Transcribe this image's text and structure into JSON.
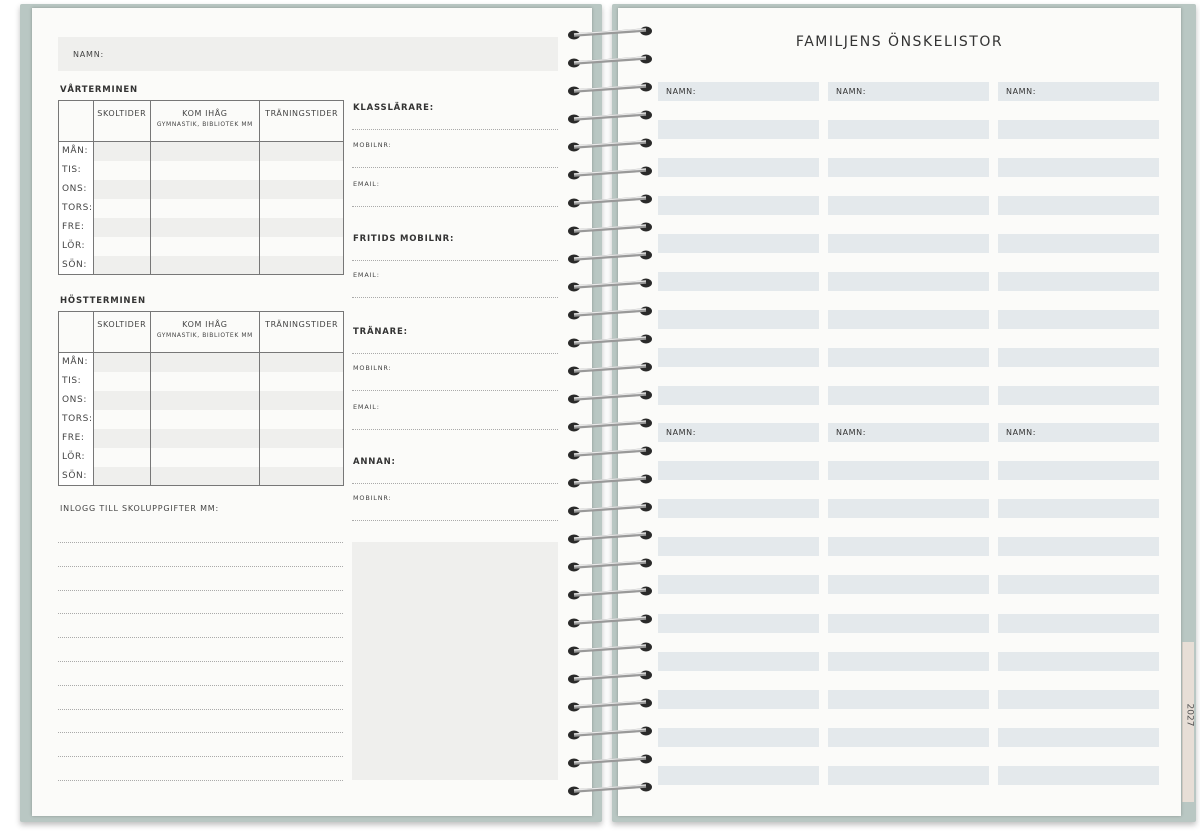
{
  "left_page": {
    "name_label": "NAMN:",
    "spring_term": {
      "title": "VÅRTERMINEN"
    },
    "autumn_term": {
      "title": "HÖSTTERMINEN"
    },
    "table_headers": [
      {
        "label": "SKOLTIDER",
        "sub": ""
      },
      {
        "label": "KOM IHÅG",
        "sub": "GYMNASTIK, BIBLIOTEK MM"
      },
      {
        "label": "TRÄNINGSTIDER",
        "sub": ""
      }
    ],
    "days": [
      "MÅN:",
      "TIS:",
      "ONS:",
      "TORS:",
      "FRE:",
      "LÖR:",
      "SÖN:"
    ],
    "login_label": "INLOGG TILL SKOLUPPGIFTER MM:",
    "contacts": [
      {
        "label": "KLASSLÄRARE:",
        "bold": true
      },
      {
        "label": "MOBILNR:",
        "bold": false
      },
      {
        "label": "EMAIL:",
        "bold": false
      },
      {
        "label": "FRITIDS MOBILNR:",
        "bold": true
      },
      {
        "label": "EMAIL:",
        "bold": false
      },
      {
        "label": "TRÄNARE:",
        "bold": true
      },
      {
        "label": "MOBILNR:",
        "bold": false
      },
      {
        "label": "EMAIL:",
        "bold": false
      },
      {
        "label": "ANNAN:",
        "bold": true
      },
      {
        "label": "MOBILNR:",
        "bold": false
      }
    ]
  },
  "right_page": {
    "title": "FAMILJENS ÖNSKELISTOR",
    "name_label": "NAMN:",
    "tab_year": "2027"
  },
  "colors": {
    "cover": "#b9c7c3",
    "page": "#fbfbf9",
    "row_fill": "#e4e9ec",
    "tab": "#e7ded6"
  }
}
